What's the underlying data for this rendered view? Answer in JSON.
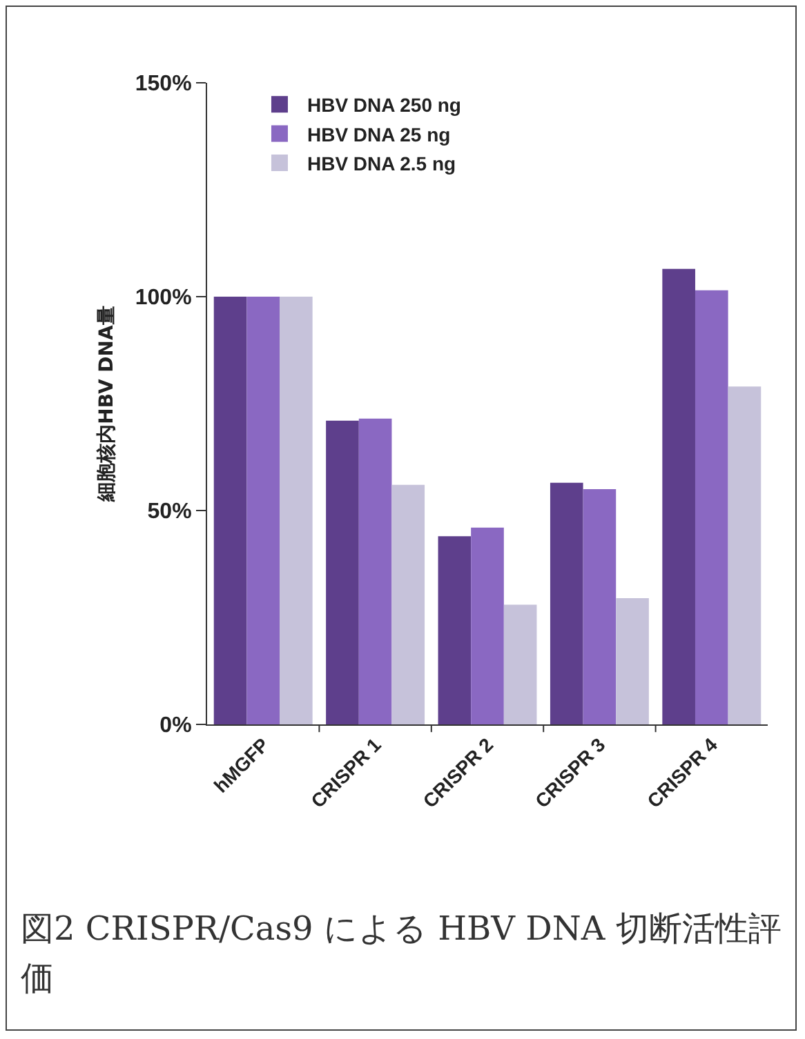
{
  "chart_data": {
    "type": "bar",
    "ylabel": "細胞核内HBV DNA量",
    "categories": [
      "hMGFP",
      "CRISPR 1",
      "CRISPR 2",
      "CRISPR 3",
      "CRISPR 4"
    ],
    "series": [
      {
        "name": "HBV DNA 250 ng",
        "color": "#5e3f8c",
        "values": [
          100,
          71,
          44,
          56.5,
          106.5
        ]
      },
      {
        "name": "HBV DNA 25 ng",
        "color": "#8a68c2",
        "values": [
          100,
          71.5,
          46,
          55,
          101.5
        ]
      },
      {
        "name": "HBV DNA 2.5 ng",
        "color": "#c6c2da",
        "values": [
          100,
          56,
          28,
          29.5,
          79
        ]
      }
    ],
    "ylim": [
      0,
      150
    ],
    "yticks": [
      {
        "value": 0,
        "label": "0%"
      },
      {
        "value": 50,
        "label": "50%"
      },
      {
        "value": 100,
        "label": "100%"
      },
      {
        "value": 150,
        "label": "150%"
      }
    ],
    "grid": false,
    "legend": "top left",
    "annotations": [
      "図2 CRISPR/Cas9 による HBV DNA 切断活性評価"
    ]
  }
}
